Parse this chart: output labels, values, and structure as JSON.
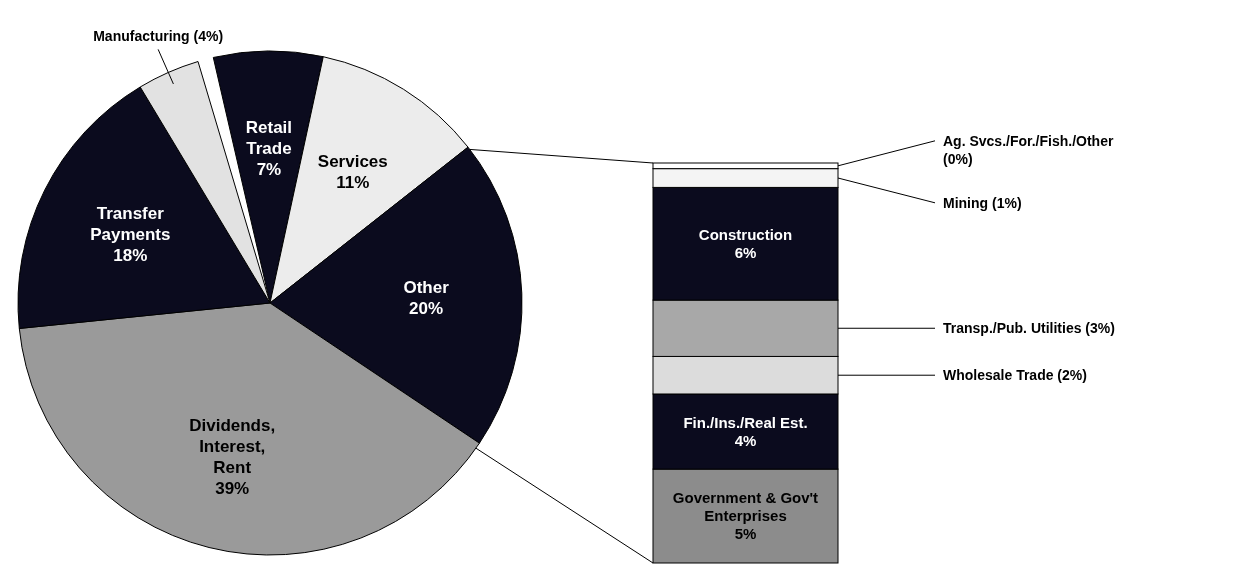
{
  "chart_data": [
    {
      "type": "pie",
      "categories": [
        "Retail Trade",
        "Services",
        "Other",
        "Dividends, Interest, Rent",
        "Transfer Payments",
        "Manufacturing"
      ],
      "values": [
        7,
        11,
        20,
        39,
        18,
        4
      ],
      "colors": [
        "#0b0b1e",
        "#ececec",
        "#0b0b1e",
        "#9a9a9a",
        "#0b0b1e",
        "#e2e2e2"
      ],
      "value_labels": [
        "7%",
        "11%",
        "20%",
        "39%",
        "18%",
        "(4%)"
      ]
    },
    {
      "type": "bar",
      "stacked": true,
      "categories": [
        null
      ],
      "series": [
        {
          "name": "Government & Gov't Enterprises",
          "color": "#8c8c8c",
          "values": [
            5
          ],
          "value_labels": [
            "5%"
          ]
        },
        {
          "name": "Fin./Ins./Real Est.",
          "color": "#0b0b1e",
          "values": [
            4
          ],
          "value_labels": [
            "4%"
          ]
        },
        {
          "name": "Wholesale Trade",
          "color": "#dcdcdc",
          "values": [
            2
          ],
          "value_labels": [
            "(2%)"
          ]
        },
        {
          "name": "Transp./Pub. Utilities",
          "color": "#a8a8a8",
          "values": [
            3
          ],
          "value_labels": [
            "(3%)"
          ]
        },
        {
          "name": "Construction",
          "color": "#0b0b1e",
          "values": [
            6
          ],
          "value_labels": [
            "6%"
          ]
        },
        {
          "name": "Mining",
          "color": "#f4f4f4",
          "values": [
            1
          ],
          "value_labels": [
            "(1%)"
          ]
        },
        {
          "name": "Ag. Svcs./For./Fish./Other",
          "color": "#ffffff",
          "values": [
            0.3
          ],
          "value_labels": [
            "(0%)"
          ]
        }
      ]
    }
  ]
}
